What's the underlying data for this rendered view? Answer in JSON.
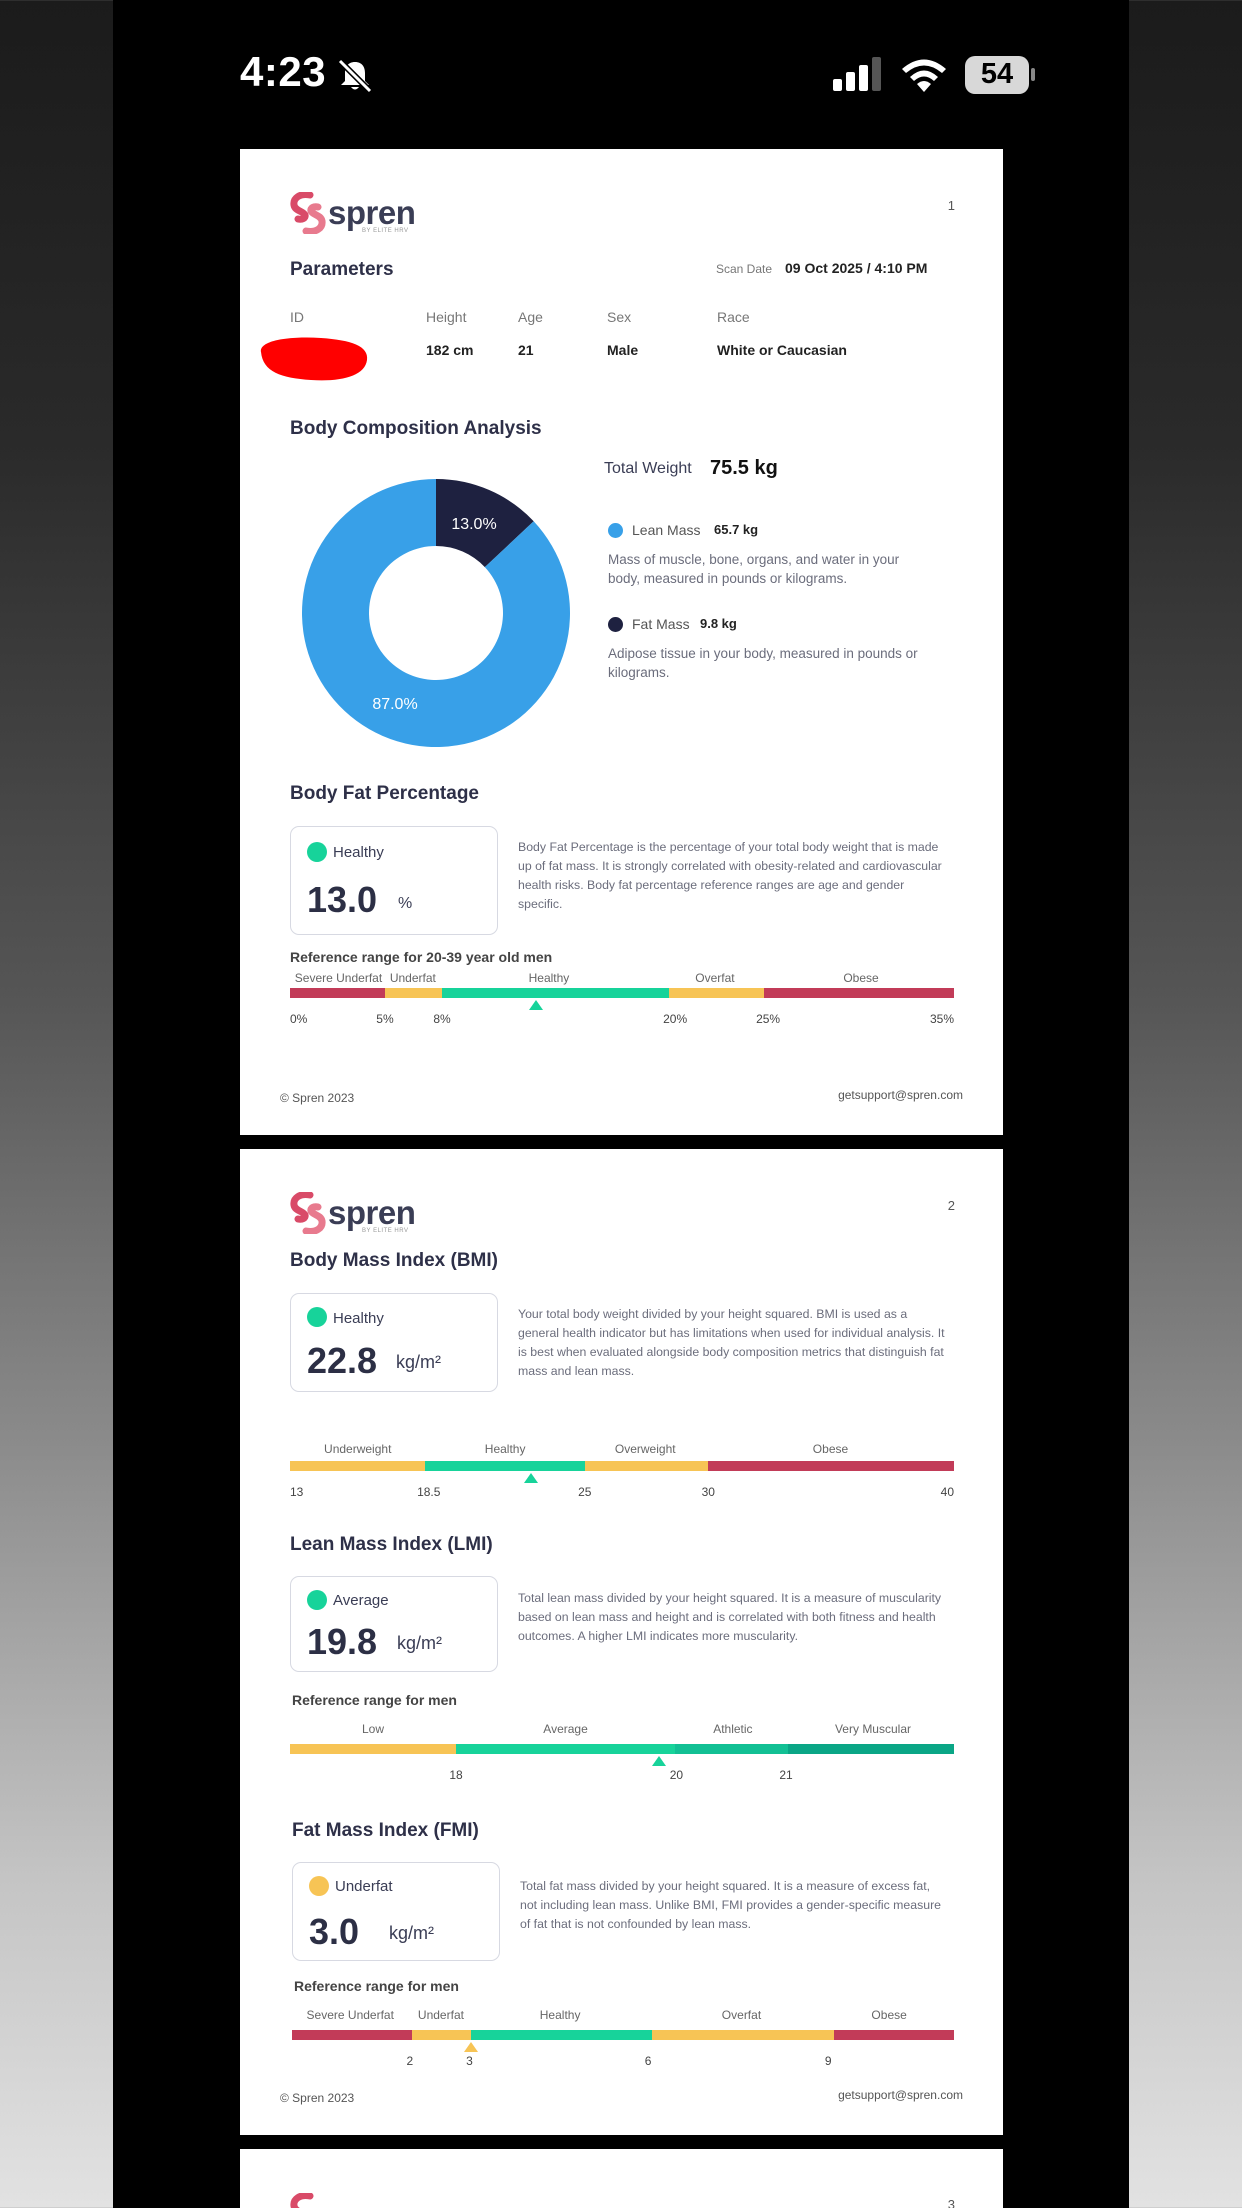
{
  "status_bar": {
    "time": "4:23",
    "battery": "54",
    "icons": [
      "bell-slash-icon",
      "signal-icon",
      "wifi-icon",
      "battery-icon"
    ]
  },
  "colors": {
    "lean": "#38a0e8",
    "fat": "#1e2140",
    "healthy": "#17d39a",
    "warn": "#f7c455",
    "danger": "#c23b58",
    "teal": "#0aa686"
  },
  "page1": {
    "page_number": "1",
    "logo": {
      "word": "spren",
      "sub": "BY ELITE HRV"
    },
    "parameters": {
      "title": "Parameters",
      "scan_date_label": "Scan Date",
      "scan_date": "09 Oct 2025 / 4:10 PM",
      "id_label": "ID",
      "height_label": "Height",
      "height": "182 cm",
      "age_label": "Age",
      "age": "21",
      "sex_label": "Sex",
      "sex": "Male",
      "race_label": "Race",
      "race": "White or Caucasian"
    },
    "body_comp": {
      "title": "Body Composition Analysis",
      "total_weight_label": "Total Weight",
      "total_weight": "75.5 kg",
      "lean_label": "Lean Mass",
      "lean_value": "65.7 kg",
      "lean_desc": "Mass of muscle, bone, organs, and water in your body, measured in pounds or kilograms.",
      "fat_label": "Fat Mass",
      "fat_value": "9.8 kg",
      "fat_desc": "Adipose tissue in your body, measured in pounds or kilograms.",
      "fat_pct_label": "13.0%",
      "lean_pct_label": "87.0%"
    },
    "body_fat": {
      "title": "Body Fat Percentage",
      "status": "Healthy",
      "value": "13.0",
      "unit": "%",
      "desc": "Body Fat Percentage is the percentage of your total body weight that is made up of fat mass. It is strongly correlated with obesity-related and cardiovascular health risks. Body fat percentage reference ranges are age and gender specific.",
      "ref_title": "Reference range for 20-39 year old men",
      "categories": [
        "Severe Underfat",
        "Underfat",
        "Healthy",
        "Overfat",
        "Obese"
      ],
      "ticks": [
        "0%",
        "5%",
        "8%",
        "20%",
        "25%",
        "35%"
      ]
    },
    "footer": {
      "copyright": "© Spren 2023",
      "email": "getsupport@spren.com"
    }
  },
  "page2": {
    "page_number": "2",
    "logo": {
      "word": "spren",
      "sub": "BY ELITE HRV"
    },
    "bmi": {
      "title": "Body Mass Index (BMI)",
      "status": "Healthy",
      "value": "22.8",
      "unit": "kg/m²",
      "desc": "Your total body weight divided by your height squared. BMI is used as a general health indicator but has limitations when used for individual analysis. It is best when evaluated alongside body composition metrics that distinguish fat mass and lean mass.",
      "categories": [
        "Underweight",
        "Healthy",
        "Overweight",
        "Obese"
      ],
      "ticks": [
        "13",
        "18.5",
        "25",
        "30",
        "40"
      ]
    },
    "lmi": {
      "title": "Lean Mass Index (LMI)",
      "status": "Average",
      "value": "19.8",
      "unit": "kg/m²",
      "desc": "Total lean mass divided by your height squared. It is a measure of muscularity based on lean mass and height and is correlated with both fitness and health outcomes. A higher LMI indicates more muscularity.",
      "ref_title": "Reference range for men",
      "categories": [
        "Low",
        "Average",
        "Athletic",
        "Very Muscular"
      ],
      "ticks": [
        "18",
        "20",
        "21"
      ]
    },
    "fmi": {
      "title": "Fat Mass Index (FMI)",
      "status": "Underfat",
      "value": "3.0",
      "unit": "kg/m²",
      "desc": "Total fat mass divided by your height squared. It is a measure of excess fat, not including lean mass. Unlike BMI, FMI provides a gender-specific measure of fat that is not confounded by lean mass.",
      "ref_title": "Reference range for men",
      "categories": [
        "Severe Underfat",
        "Underfat",
        "Healthy",
        "Overfat",
        "Obese"
      ],
      "ticks": [
        "2",
        "3",
        "6",
        "9"
      ]
    },
    "footer": {
      "copyright": "© Spren 2023",
      "email": "getsupport@spren.com"
    }
  },
  "page3": {
    "page_number": "3"
  }
}
